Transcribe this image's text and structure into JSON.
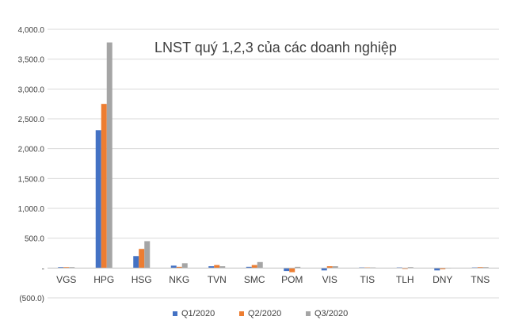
{
  "chart_data": {
    "type": "bar",
    "title": "LNST quý 1,2,3 của các doanh nghiệp",
    "categories": [
      "VGS",
      "HPG",
      "HSG",
      "NKG",
      "TVN",
      "SMC",
      "POM",
      "VIS",
      "TIS",
      "TLH",
      "DNY",
      "TNS"
    ],
    "series": [
      {
        "name": "Q1/2020",
        "color": "#4472C4",
        "values": [
          15,
          2310,
          200,
          40,
          30,
          20,
          -50,
          -40,
          10,
          10,
          -40,
          10
        ]
      },
      {
        "name": "Q2/2020",
        "color": "#ED7D31",
        "values": [
          15,
          2750,
          320,
          20,
          50,
          50,
          -70,
          30,
          10,
          -15,
          -20,
          15
        ]
      },
      {
        "name": "Q3/2020",
        "color": "#A5A5A5",
        "values": [
          15,
          3780,
          450,
          80,
          30,
          100,
          20,
          30,
          10,
          15,
          0,
          15
        ]
      }
    ],
    "ylim": [
      -500,
      4000
    ],
    "yticks": [
      -500,
      0,
      500,
      1000,
      1500,
      2000,
      2500,
      3000,
      3500,
      4000
    ],
    "ytick_labels": [
      "(500.0)",
      "-",
      "500.0",
      "1,000.0",
      "1,500.0",
      "2,000.0",
      "2,500.0",
      "3,000.0",
      "3,500.0",
      "4,000.0"
    ],
    "grid": true,
    "legend_position": "bottom"
  }
}
